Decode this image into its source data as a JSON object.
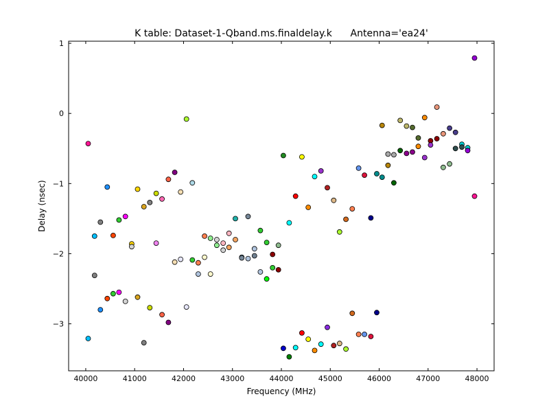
{
  "chart_data": {
    "type": "scatter",
    "title": "K table: Dataset-1-Qband.ms.finaldelay.k      Antenna='ea24'",
    "xlabel": "Frequency (MHz)",
    "ylabel": "Delay (nsec)",
    "xlim": [
      39650,
      48350
    ],
    "ylim": [
      -3.67,
      1.03
    ],
    "xticks": [
      40000,
      41000,
      42000,
      43000,
      44000,
      45000,
      46000,
      47000,
      48000
    ],
    "xtick_labels": [
      "40000",
      "41000",
      "42000",
      "43000",
      "44000",
      "45000",
      "46000",
      "47000",
      "48000"
    ],
    "yticks": [
      1,
      0,
      -1,
      -2,
      -3
    ],
    "ytick_labels": [
      "1",
      "0",
      "−1",
      "−2",
      "−3"
    ],
    "grid": false,
    "legend": "none",
    "points": [
      {
        "x": 40050,
        "y": -0.43,
        "color": "#ff1493"
      },
      {
        "x": 40050,
        "y": -3.21,
        "color": "#00bfff"
      },
      {
        "x": 40180,
        "y": -1.75,
        "color": "#00bfff"
      },
      {
        "x": 40180,
        "y": -2.31,
        "color": "#808080"
      },
      {
        "x": 40300,
        "y": -1.55,
        "color": "#808080"
      },
      {
        "x": 40300,
        "y": -2.8,
        "color": "#1e90ff"
      },
      {
        "x": 40440,
        "y": -1.05,
        "color": "#1e90ff"
      },
      {
        "x": 40440,
        "y": -2.64,
        "color": "#ff4500"
      },
      {
        "x": 40560,
        "y": -1.74,
        "color": "#ff4500"
      },
      {
        "x": 40560,
        "y": -2.57,
        "color": "#32cd32"
      },
      {
        "x": 40680,
        "y": -1.52,
        "color": "#32cd32"
      },
      {
        "x": 40680,
        "y": -2.55,
        "color": "#ff00ff"
      },
      {
        "x": 40810,
        "y": -1.47,
        "color": "#ff00ff"
      },
      {
        "x": 40810,
        "y": -2.68,
        "color": "#d3d3d3"
      },
      {
        "x": 40940,
        "y": -1.86,
        "color": "#ffd700"
      },
      {
        "x": 40940,
        "y": -1.9,
        "color": "#d3d3d3"
      },
      {
        "x": 41060,
        "y": -1.08,
        "color": "#ffd700"
      },
      {
        "x": 41060,
        "y": -2.62,
        "color": "#daa520"
      },
      {
        "x": 41190,
        "y": -1.33,
        "color": "#daa520"
      },
      {
        "x": 41190,
        "y": -3.27,
        "color": "#808080"
      },
      {
        "x": 41310,
        "y": -1.27,
        "color": "#808080"
      },
      {
        "x": 41310,
        "y": -2.77,
        "color": "#ccdd00"
      },
      {
        "x": 41440,
        "y": -1.14,
        "color": "#ccdd00"
      },
      {
        "x": 41440,
        "y": -1.85,
        "color": "#ee82ee"
      },
      {
        "x": 41560,
        "y": -1.22,
        "color": "#ff69b4"
      },
      {
        "x": 41560,
        "y": -2.87,
        "color": "#ff6347"
      },
      {
        "x": 41690,
        "y": -0.94,
        "color": "#ff6347"
      },
      {
        "x": 41690,
        "y": -2.98,
        "color": "#800080"
      },
      {
        "x": 41820,
        "y": -0.84,
        "color": "#800080"
      },
      {
        "x": 41820,
        "y": -2.12,
        "color": "#f5deb3"
      },
      {
        "x": 41940,
        "y": -1.12,
        "color": "#f5deb3"
      },
      {
        "x": 41940,
        "y": -2.08,
        "color": "#e6e6fa"
      },
      {
        "x": 42060,
        "y": -0.08,
        "color": "#adff2f"
      },
      {
        "x": 42060,
        "y": -2.76,
        "color": "#e6e6fa"
      },
      {
        "x": 42180,
        "y": -0.99,
        "color": "#add8e6"
      },
      {
        "x": 42180,
        "y": -2.09,
        "color": "#32cd32"
      },
      {
        "x": 42300,
        "y": -2.13,
        "color": "#ff7f50"
      },
      {
        "x": 42300,
        "y": -2.29,
        "color": "#b0c4de"
      },
      {
        "x": 42430,
        "y": -1.75,
        "color": "#ff7f50"
      },
      {
        "x": 42430,
        "y": -2.05,
        "color": "#fffacd"
      },
      {
        "x": 42550,
        "y": -1.78,
        "color": "#90ee90"
      },
      {
        "x": 42550,
        "y": -2.29,
        "color": "#fffacd"
      },
      {
        "x": 42680,
        "y": -1.8,
        "color": "#d3d3d3"
      },
      {
        "x": 42680,
        "y": -1.88,
        "color": "#90ee90"
      },
      {
        "x": 42810,
        "y": -1.85,
        "color": "#ffb6c1"
      },
      {
        "x": 42810,
        "y": -1.95,
        "color": "#d3d3d3"
      },
      {
        "x": 42930,
        "y": -1.71,
        "color": "#ffb6c1"
      },
      {
        "x": 42930,
        "y": -1.91,
        "color": "#f4a460"
      },
      {
        "x": 43060,
        "y": -1.5,
        "color": "#20b2aa"
      },
      {
        "x": 43060,
        "y": -1.8,
        "color": "#f4a460"
      },
      {
        "x": 43190,
        "y": -2.05,
        "color": "#87cefa"
      },
      {
        "x": 43190,
        "y": -2.06,
        "color": "#778899"
      },
      {
        "x": 43320,
        "y": -1.47,
        "color": "#778899"
      },
      {
        "x": 43320,
        "y": -2.07,
        "color": "#b0c4de"
      },
      {
        "x": 43450,
        "y": -1.93,
        "color": "#b0c4de"
      },
      {
        "x": 43450,
        "y": -2.03,
        "color": "#708090"
      },
      {
        "x": 43570,
        "y": -1.67,
        "color": "#32cd32"
      },
      {
        "x": 43570,
        "y": -2.26,
        "color": "#b0c4de"
      },
      {
        "x": 43700,
        "y": -1.84,
        "color": "#32cd32"
      },
      {
        "x": 43700,
        "y": -2.36,
        "color": "#00ff00"
      },
      {
        "x": 43820,
        "y": -2.01,
        "color": "#8b0000"
      },
      {
        "x": 43820,
        "y": -2.2,
        "color": "#32cd32"
      },
      {
        "x": 43940,
        "y": -1.88,
        "color": "#8fbc8f"
      },
      {
        "x": 43940,
        "y": -2.23,
        "color": "#8b0000"
      },
      {
        "x": 44040,
        "y": -0.6,
        "color": "#228b22"
      },
      {
        "x": 44040,
        "y": -3.35,
        "color": "#0000cd"
      },
      {
        "x": 44160,
        "y": -1.56,
        "color": "#00ffff"
      },
      {
        "x": 44160,
        "y": -3.47,
        "color": "#008000"
      },
      {
        "x": 44290,
        "y": -1.18,
        "color": "#ff0000"
      },
      {
        "x": 44290,
        "y": -3.34,
        "color": "#00ffff"
      },
      {
        "x": 44420,
        "y": -0.62,
        "color": "#ffff00"
      },
      {
        "x": 44420,
        "y": -3.13,
        "color": "#ff0000"
      },
      {
        "x": 44550,
        "y": -1.34,
        "color": "#ff8c00"
      },
      {
        "x": 44550,
        "y": -3.22,
        "color": "#ffff00"
      },
      {
        "x": 44680,
        "y": -0.9,
        "color": "#00ffff"
      },
      {
        "x": 44680,
        "y": -3.38,
        "color": "#ff8c00"
      },
      {
        "x": 44810,
        "y": -0.82,
        "color": "#9932cc"
      },
      {
        "x": 44810,
        "y": -3.29,
        "color": "#00ffff"
      },
      {
        "x": 44940,
        "y": -1.06,
        "color": "#b22222"
      },
      {
        "x": 44940,
        "y": -3.05,
        "color": "#8a2be2"
      },
      {
        "x": 45070,
        "y": -1.24,
        "color": "#deb887"
      },
      {
        "x": 45070,
        "y": -3.31,
        "color": "#b22222"
      },
      {
        "x": 45190,
        "y": -1.69,
        "color": "#adff2f"
      },
      {
        "x": 45190,
        "y": -3.28,
        "color": "#deb887"
      },
      {
        "x": 45320,
        "y": -1.51,
        "color": "#d2691e"
      },
      {
        "x": 45320,
        "y": -3.36,
        "color": "#adff2f"
      },
      {
        "x": 45450,
        "y": -1.36,
        "color": "#ff7f50"
      },
      {
        "x": 45450,
        "y": -2.85,
        "color": "#d2691e"
      },
      {
        "x": 45580,
        "y": -0.78,
        "color": "#6495ed"
      },
      {
        "x": 45580,
        "y": -3.15,
        "color": "#ff7f50"
      },
      {
        "x": 45700,
        "y": -0.88,
        "color": "#dc143c"
      },
      {
        "x": 45700,
        "y": -3.15,
        "color": "#6495ed"
      },
      {
        "x": 45830,
        "y": -1.49,
        "color": "#00008b"
      },
      {
        "x": 45830,
        "y": -3.18,
        "color": "#dc143c"
      },
      {
        "x": 45950,
        "y": -0.86,
        "color": "#008b8b"
      },
      {
        "x": 45950,
        "y": -2.84,
        "color": "#00008b"
      },
      {
        "x": 46060,
        "y": -0.17,
        "color": "#b8860b"
      },
      {
        "x": 46060,
        "y": -0.91,
        "color": "#008b8b"
      },
      {
        "x": 46180,
        "y": -0.58,
        "color": "#a9a9a9"
      },
      {
        "x": 46180,
        "y": -0.74,
        "color": "#b8860b"
      },
      {
        "x": 46300,
        "y": -0.59,
        "color": "#a9a9a9"
      },
      {
        "x": 46300,
        "y": -0.99,
        "color": "#006400"
      },
      {
        "x": 46430,
        "y": -0.1,
        "color": "#bdb76b"
      },
      {
        "x": 46430,
        "y": -0.53,
        "color": "#006400"
      },
      {
        "x": 46560,
        "y": -0.18,
        "color": "#bdb76b"
      },
      {
        "x": 46560,
        "y": -0.57,
        "color": "#8b008b"
      },
      {
        "x": 46680,
        "y": -0.2,
        "color": "#556b2f"
      },
      {
        "x": 46680,
        "y": -0.55,
        "color": "#8b008b"
      },
      {
        "x": 46800,
        "y": -0.35,
        "color": "#556b2f"
      },
      {
        "x": 46800,
        "y": -0.47,
        "color": "#ff8c00"
      },
      {
        "x": 46930,
        "y": -0.06,
        "color": "#ff8c00"
      },
      {
        "x": 46930,
        "y": -0.63,
        "color": "#9932cc"
      },
      {
        "x": 47050,
        "y": -0.39,
        "color": "#8b0000"
      },
      {
        "x": 47050,
        "y": -0.45,
        "color": "#9932cc"
      },
      {
        "x": 47180,
        "y": 0.09,
        "color": "#e9967a"
      },
      {
        "x": 47180,
        "y": -0.36,
        "color": "#8b0000"
      },
      {
        "x": 47310,
        "y": -0.29,
        "color": "#e9967a"
      },
      {
        "x": 47310,
        "y": -0.77,
        "color": "#8fbc8f"
      },
      {
        "x": 47440,
        "y": -0.21,
        "color": "#483d8b"
      },
      {
        "x": 47440,
        "y": -0.72,
        "color": "#8fbc8f"
      },
      {
        "x": 47560,
        "y": -0.27,
        "color": "#483d8b"
      },
      {
        "x": 47560,
        "y": -0.5,
        "color": "#2f4f4f"
      },
      {
        "x": 47690,
        "y": -0.44,
        "color": "#00ced1"
      },
      {
        "x": 47690,
        "y": -0.48,
        "color": "#2f4f4f"
      },
      {
        "x": 47810,
        "y": -0.49,
        "color": "#00ced1"
      },
      {
        "x": 47810,
        "y": -0.53,
        "color": "#9400d3"
      },
      {
        "x": 47950,
        "y": 0.79,
        "color": "#9400d3"
      },
      {
        "x": 47950,
        "y": -1.18,
        "color": "#ff1493"
      }
    ]
  }
}
